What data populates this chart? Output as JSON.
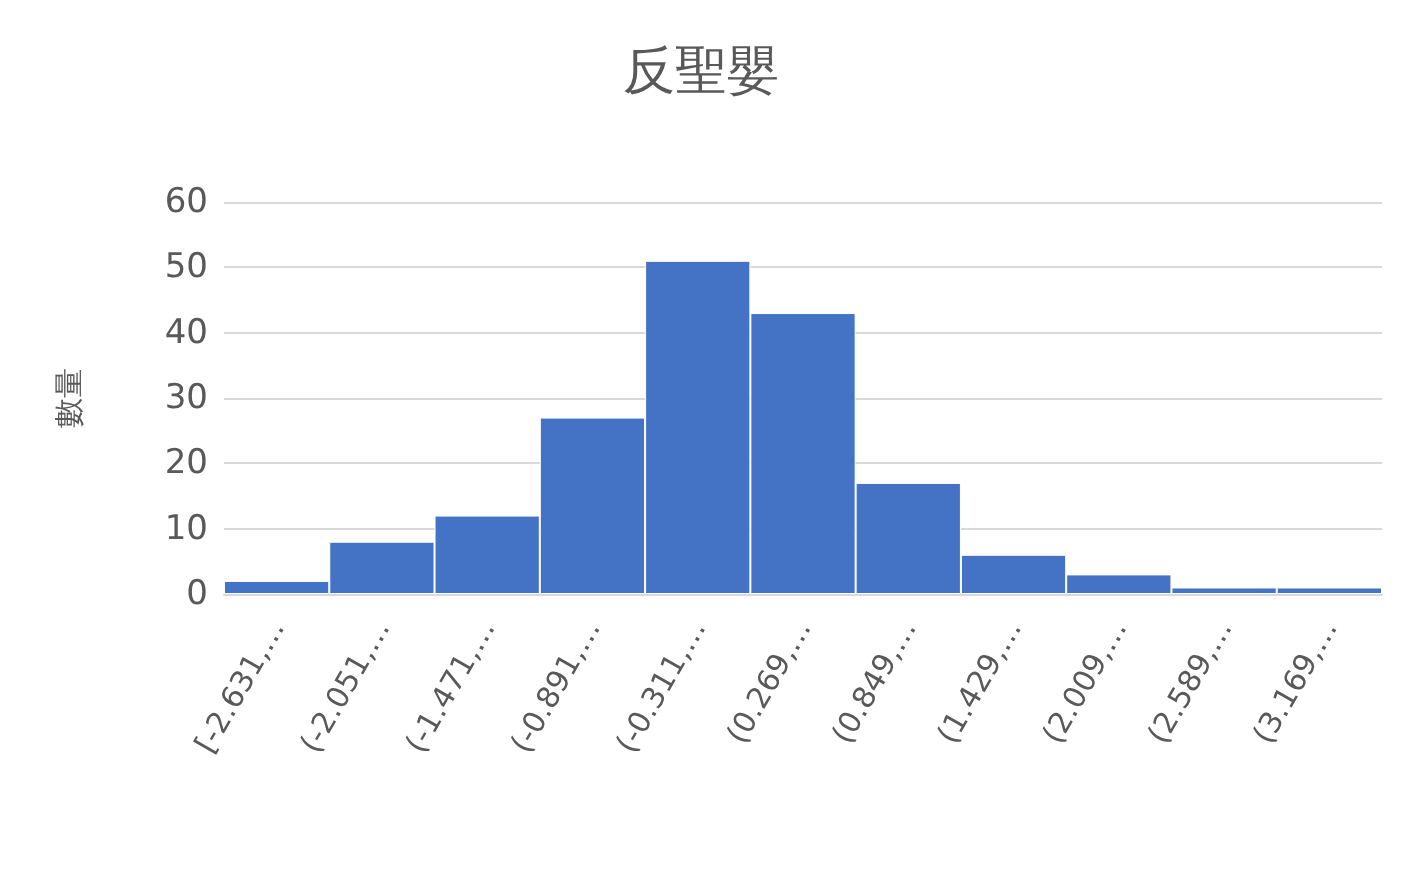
{
  "chart_data": {
    "type": "bar",
    "title": "反聖嬰",
    "ylabel": "數量",
    "categories": [
      "[-2.631,…",
      "(-2.051,…",
      "(-1.471,…",
      "(-0.891,…",
      "(-0.311,…",
      "(0.269,…",
      "(0.849,…",
      "(1.429,…",
      "(2.009,…",
      "(2.589,…",
      "(3.169,…"
    ],
    "values": [
      2,
      8,
      12,
      27,
      51,
      43,
      17,
      6,
      3,
      1,
      1
    ],
    "color": "#4472c4",
    "ylim": [
      0,
      60
    ],
    "yticks": [
      0,
      10,
      20,
      30,
      40,
      50,
      60
    ],
    "grid": "y"
  }
}
